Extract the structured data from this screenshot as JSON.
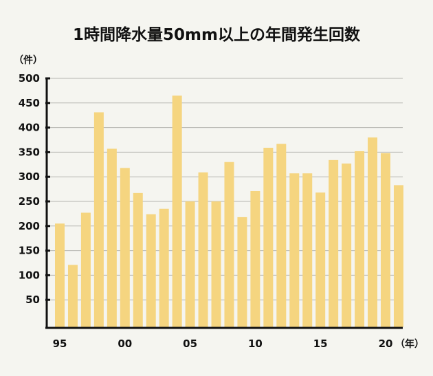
{
  "chart_data": {
    "type": "bar",
    "title": "1時間降水量50mm以上の年間発生回数",
    "ylabel": "（件）",
    "xlabel": "（年）",
    "ylim": [
      0,
      500
    ],
    "yticks": [
      50,
      100,
      150,
      200,
      250,
      300,
      350,
      400,
      450,
      500
    ],
    "xtick_labels": [
      "95",
      "00",
      "05",
      "10",
      "15",
      "20"
    ],
    "grid": true,
    "bar_color": "#f5d580",
    "categories": [
      "1995",
      "1996",
      "1997",
      "1998",
      "1999",
      "2000",
      "2001",
      "2002",
      "2003",
      "2004",
      "2005",
      "2006",
      "2007",
      "2008",
      "2009",
      "2010",
      "2011",
      "2012",
      "2013",
      "2014",
      "2015",
      "2016",
      "2017",
      "2018",
      "2019",
      "2020",
      "2021"
    ],
    "values": [
      205,
      121,
      227,
      431,
      357,
      318,
      267,
      224,
      235,
      465,
      250,
      309,
      250,
      330,
      218,
      271,
      359,
      367,
      307,
      307,
      268,
      334,
      327,
      352,
      380,
      348,
      283
    ]
  }
}
